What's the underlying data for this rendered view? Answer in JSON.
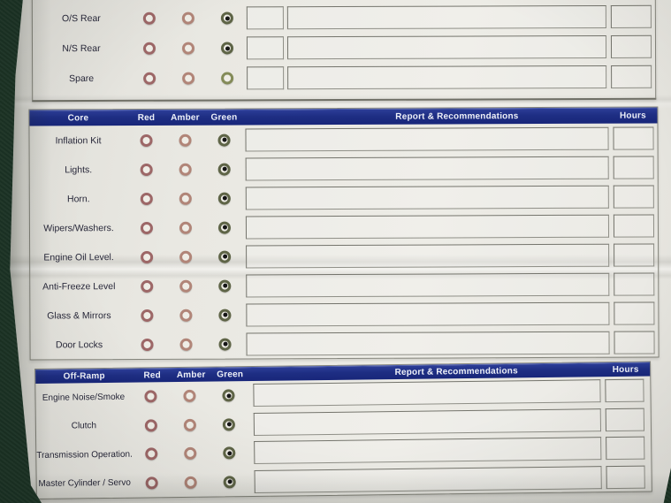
{
  "colors": {
    "background": "#1c3425",
    "paper": "#e8e7e1",
    "header_bar": "#1e2e83",
    "header_text": "#eef1f9",
    "section_border": "#85857c",
    "box_border": "#8f8f87",
    "label_text": "#272739",
    "radio_red_ring": "#9d6767",
    "radio_amber_ring": "#b18578",
    "radio_green_ring": "#5e6446",
    "radio_green_unchecked_ring": "#848b58",
    "radio_dot": "#161616"
  },
  "sections": [
    {
      "id": "tyres-partial",
      "header": null,
      "has_small_box": true,
      "rows": [
        {
          "label": "O/S Rear",
          "selected": "green",
          "small_box": "",
          "report": "",
          "hours": ""
        },
        {
          "label": "N/S Rear",
          "selected": "green",
          "small_box": "",
          "report": "",
          "hours": ""
        },
        {
          "label": "Spare",
          "selected": "none",
          "small_box": "",
          "report": "",
          "hours": ""
        }
      ]
    },
    {
      "id": "core",
      "header": {
        "title": "Core",
        "red": "Red",
        "amber": "Amber",
        "green": "Green",
        "report": "Report & Recommendations",
        "hours": "Hours"
      },
      "has_small_box": false,
      "rows": [
        {
          "label": "Inflation Kit",
          "selected": "green",
          "report": "",
          "hours": ""
        },
        {
          "label": "Lights.",
          "selected": "green",
          "report": "",
          "hours": ""
        },
        {
          "label": "Horn.",
          "selected": "green",
          "report": "",
          "hours": ""
        },
        {
          "label": "Wipers/Washers.",
          "selected": "green",
          "report": "",
          "hours": ""
        },
        {
          "label": "Engine Oil Level.",
          "selected": "green",
          "report": "",
          "hours": ""
        },
        {
          "label": "Anti-Freeze Level",
          "selected": "green",
          "report": "",
          "hours": ""
        },
        {
          "label": "Glass & Mirrors",
          "selected": "green",
          "report": "",
          "hours": ""
        },
        {
          "label": "Door Locks",
          "selected": "green",
          "report": "",
          "hours": ""
        }
      ]
    },
    {
      "id": "off-ramp",
      "header": {
        "title": "Off-Ramp",
        "red": "Red",
        "amber": "Amber",
        "green": "Green",
        "report": "Report & Recommendations",
        "hours": "Hours"
      },
      "has_small_box": false,
      "rows": [
        {
          "label": "Engine Noise/Smoke",
          "selected": "green",
          "report": "",
          "hours": ""
        },
        {
          "label": "Clutch",
          "selected": "green",
          "report": "",
          "hours": ""
        },
        {
          "label": "Transmission Operation.",
          "selected": "green",
          "report": "",
          "hours": ""
        },
        {
          "label": "Master Cylinder / Servo",
          "selected": "green",
          "report": "",
          "hours": ""
        }
      ]
    }
  ]
}
